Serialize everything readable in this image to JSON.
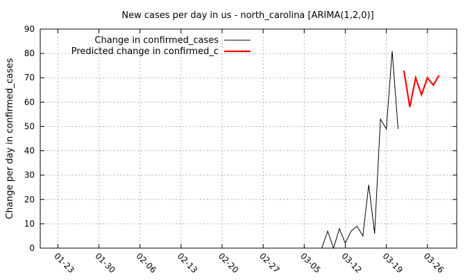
{
  "chart_data": {
    "type": "line",
    "title": "New cases per day in us - north_carolina [ARIMA(1,2,0)]",
    "xlabel": "",
    "ylabel": "Change per day in confirmed_cases",
    "ylim": [
      0,
      90
    ],
    "yticks": [
      "0",
      "10",
      "20",
      "30",
      "40",
      "50",
      "60",
      "70",
      "80",
      "90"
    ],
    "xlim": [
      "2020-01-20",
      "2020-03-31"
    ],
    "xticks": [
      {
        "date": "2020-01-23",
        "label": "01-23"
      },
      {
        "date": "2020-01-30",
        "label": "01-30"
      },
      {
        "date": "2020-02-06",
        "label": "02-06"
      },
      {
        "date": "2020-02-13",
        "label": "02-13"
      },
      {
        "date": "2020-02-20",
        "label": "02-20"
      },
      {
        "date": "2020-02-27",
        "label": "02-27"
      },
      {
        "date": "2020-03-05",
        "label": "03-05"
      },
      {
        "date": "2020-03-12",
        "label": "03-12"
      },
      {
        "date": "2020-03-19",
        "label": "03-19"
      },
      {
        "date": "2020-03-26",
        "label": "03-26"
      }
    ],
    "grid": true,
    "legend_position": "top-left",
    "series": [
      {
        "name": "Change in confirmed_cases",
        "color": "#000000",
        "points": [
          {
            "x": "2020-03-07",
            "y": 0
          },
          {
            "x": "2020-03-08",
            "y": 0
          },
          {
            "x": "2020-03-09",
            "y": 7
          },
          {
            "x": "2020-03-10",
            "y": 0
          },
          {
            "x": "2020-03-11",
            "y": 8
          },
          {
            "x": "2020-03-12",
            "y": 2
          },
          {
            "x": "2020-03-13",
            "y": 7
          },
          {
            "x": "2020-03-14",
            "y": 9
          },
          {
            "x": "2020-03-15",
            "y": 5
          },
          {
            "x": "2020-03-16",
            "y": 26
          },
          {
            "x": "2020-03-17",
            "y": 6
          },
          {
            "x": "2020-03-18",
            "y": 53
          },
          {
            "x": "2020-03-19",
            "y": 49
          },
          {
            "x": "2020-03-20",
            "y": 81
          },
          {
            "x": "2020-03-21",
            "y": 49
          }
        ]
      },
      {
        "name": "Predicted change in confirmed_c",
        "color": "#ff0000",
        "points": [
          {
            "x": "2020-03-22",
            "y": 73
          },
          {
            "x": "2020-03-23",
            "y": 58
          },
          {
            "x": "2020-03-24",
            "y": 70
          },
          {
            "x": "2020-03-25",
            "y": 63
          },
          {
            "x": "2020-03-26",
            "y": 70
          },
          {
            "x": "2020-03-27",
            "y": 67
          },
          {
            "x": "2020-03-28",
            "y": 71
          }
        ]
      }
    ]
  }
}
